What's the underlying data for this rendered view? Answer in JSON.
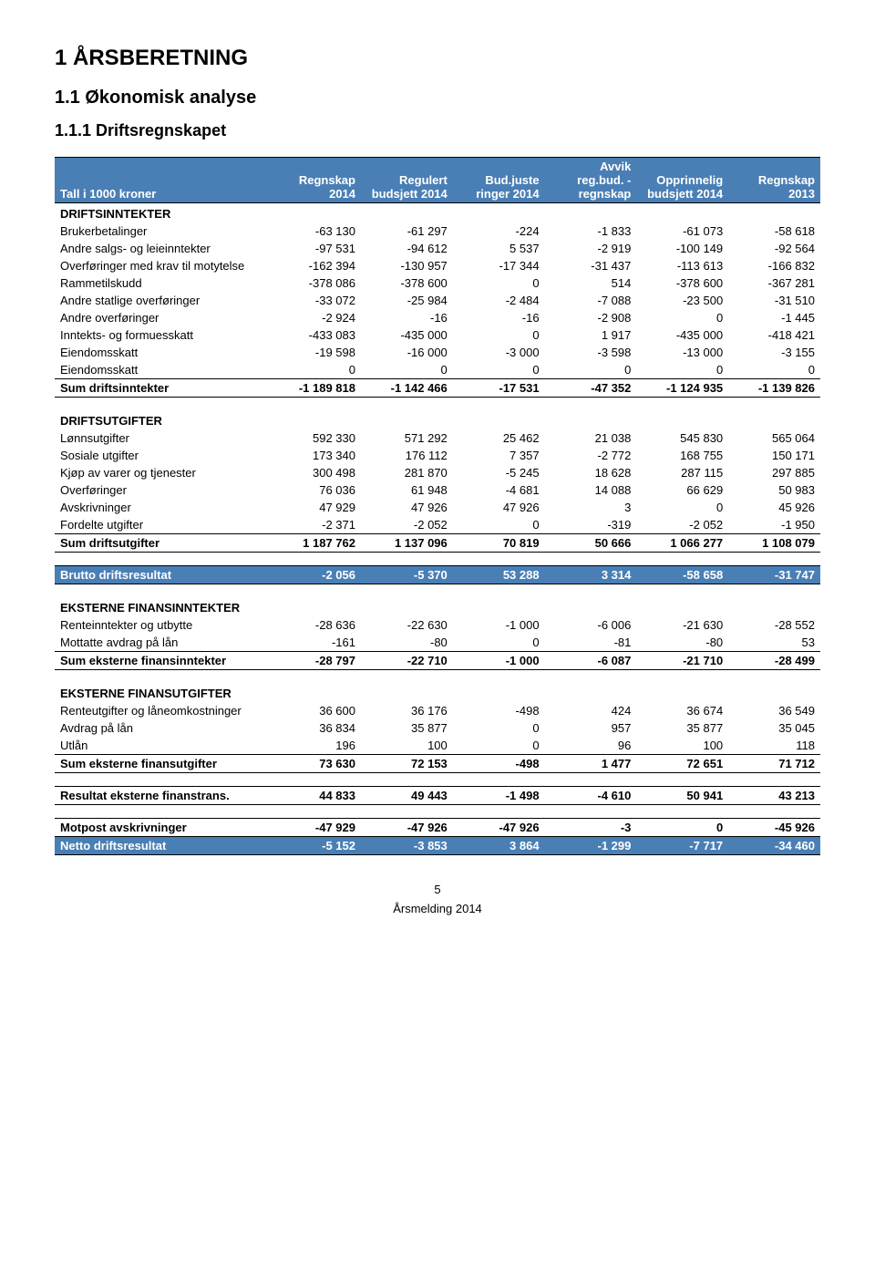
{
  "headings": {
    "h1": "1  ÅRSBERETNING",
    "h2": "1.1 Økonomisk analyse",
    "h3": "1.1.1 Driftsregnskapet"
  },
  "columns": [
    "Tall i 1000 kroner",
    "Regnskap 2014",
    "Regulert budsjett 2014",
    "Bud.juste ringer 2014",
    "Avvik reg.bud. - regnskap",
    "Opprinnelig budsjett 2014",
    "Regnskap 2013"
  ],
  "colors": {
    "header_bg": "#4a7fb5",
    "header_fg": "#ffffff",
    "page_bg": "#ffffff",
    "text": "#000000"
  },
  "fontsize": {
    "body": 13,
    "h1": 24,
    "h2": 20,
    "h3": 18
  },
  "sections": [
    {
      "title": "DRIFTSINNTEKTER",
      "rows": [
        [
          "Brukerbetalinger",
          "-63 130",
          "-61 297",
          "-224",
          "-1 833",
          "-61 073",
          "-58 618"
        ],
        [
          "Andre salgs- og leieinntekter",
          "-97 531",
          "-94 612",
          "5 537",
          "-2 919",
          "-100 149",
          "-92 564"
        ],
        [
          "Overføringer med krav til motytelse",
          "-162 394",
          "-130 957",
          "-17 344",
          "-31 437",
          "-113 613",
          "-166 832"
        ],
        [
          "Rammetilskudd",
          "-378 086",
          "-378 600",
          "0",
          "514",
          "-378 600",
          "-367 281"
        ],
        [
          "Andre statlige overføringer",
          "-33 072",
          "-25 984",
          "-2 484",
          "-7 088",
          "-23 500",
          "-31 510"
        ],
        [
          "Andre overføringer",
          "-2 924",
          "-16",
          "-16",
          "-2 908",
          "0",
          "-1 445"
        ],
        [
          "Inntekts- og formuesskatt",
          "-433 083",
          "-435 000",
          "0",
          "1 917",
          "-435 000",
          "-418 421"
        ],
        [
          "Eiendomsskatt",
          "-19 598",
          "-16 000",
          "-3 000",
          "-3 598",
          "-13 000",
          "-3 155"
        ],
        [
          "Eiendomsskatt",
          "0",
          "0",
          "0",
          "0",
          "0",
          "0"
        ]
      ],
      "sum": [
        "Sum driftsinntekter",
        "-1 189 818",
        "-1 142 466",
        "-17 531",
        "-47 352",
        "-1 124 935",
        "-1 139 826"
      ]
    },
    {
      "title": "DRIFTSUTGIFTER",
      "rows": [
        [
          "Lønnsutgifter",
          "592 330",
          "571 292",
          "25 462",
          "21 038",
          "545 830",
          "565 064"
        ],
        [
          "Sosiale utgifter",
          "173 340",
          "176 112",
          "7 357",
          "-2 772",
          "168 755",
          "150 171"
        ],
        [
          "Kjøp av varer og tjenester",
          "300 498",
          "281 870",
          "-5 245",
          "18 628",
          "287 115",
          "297 885"
        ],
        [
          "Overføringer",
          "76 036",
          "61 948",
          "-4 681",
          "14 088",
          "66 629",
          "50 983"
        ],
        [
          "Avskrivninger",
          "47 929",
          "47 926",
          "47 926",
          "3",
          "0",
          "45 926"
        ],
        [
          "Fordelte utgifter",
          "-2 371",
          "-2 052",
          "0",
          "-319",
          "-2 052",
          "-1 950"
        ]
      ],
      "sum": [
        "Sum driftsutgifter",
        "1 187 762",
        "1 137 096",
        "70 819",
        "50 666",
        "1 066 277",
        "1 108 079"
      ]
    }
  ],
  "brutto": [
    "Brutto driftsresultat",
    "-2 056",
    "-5 370",
    "53 288",
    "3 314",
    "-58 658",
    "-31 747"
  ],
  "eksterne_inntekter": {
    "title": "EKSTERNE FINANSINNTEKTER",
    "rows": [
      [
        "Renteinntekter og utbytte",
        "-28 636",
        "-22 630",
        "-1 000",
        "-6 006",
        "-21 630",
        "-28 552"
      ],
      [
        "Mottatte avdrag på lån",
        "-161",
        "-80",
        "0",
        "-81",
        "-80",
        "53"
      ]
    ],
    "sum": [
      "Sum eksterne finansinntekter",
      "-28 797",
      "-22 710",
      "-1 000",
      "-6 087",
      "-21 710",
      "-28 499"
    ]
  },
  "eksterne_utgifter": {
    "title": "EKSTERNE FINANSUTGIFTER",
    "rows": [
      [
        "Renteutgifter og låneomkostninger",
        "36 600",
        "36 176",
        "-498",
        "424",
        "36 674",
        "36 549"
      ],
      [
        "Avdrag på lån",
        "36 834",
        "35 877",
        "0",
        "957",
        "35 877",
        "35 045"
      ],
      [
        "Utlån",
        "196",
        "100",
        "0",
        "96",
        "100",
        "118"
      ]
    ],
    "sum": [
      "Sum eksterne finansutgifter",
      "73 630",
      "72 153",
      "-498",
      "1 477",
      "72 651",
      "71 712"
    ]
  },
  "resultat_eksterne": [
    "Resultat eksterne finanstrans.",
    "44 833",
    "49 443",
    "-1 498",
    "-4 610",
    "50 941",
    "43 213"
  ],
  "motpost": [
    "Motpost avskrivninger",
    "-47 929",
    "-47 926",
    "-47 926",
    "-3",
    "0",
    "-45 926"
  ],
  "netto": [
    "Netto driftsresultat",
    "-5 152",
    "-3 853",
    "3 864",
    "-1 299",
    "-7 717",
    "-34 460"
  ],
  "footer": {
    "page": "5",
    "title": "Årsmelding 2014"
  }
}
